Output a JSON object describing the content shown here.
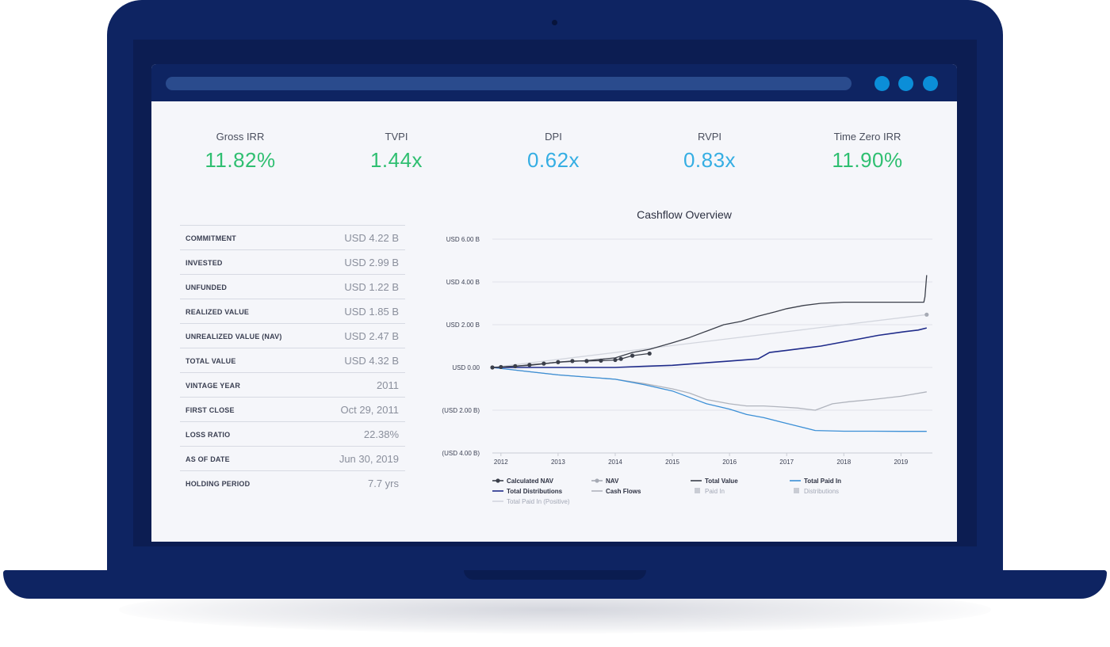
{
  "colors": {
    "positive": "#2fbf71",
    "neutral": "#35aee3",
    "navy": "#0e2462"
  },
  "browser": {
    "window_buttons": [
      "blue-dot",
      "blue-dot",
      "blue-dot"
    ]
  },
  "kpis": [
    {
      "label": "Gross IRR",
      "value": "11.82%",
      "tone": "positive"
    },
    {
      "label": "TVPI",
      "value": "1.44x",
      "tone": "positive"
    },
    {
      "label": "DPI",
      "value": "0.62x",
      "tone": "neutral"
    },
    {
      "label": "RVPI",
      "value": "0.83x",
      "tone": "neutral"
    },
    {
      "label": "Time Zero IRR",
      "value": "11.90%",
      "tone": "positive"
    }
  ],
  "summary": [
    {
      "label": "COMMITMENT",
      "value": "USD 4.22 B"
    },
    {
      "label": "INVESTED",
      "value": "USD 2.99 B"
    },
    {
      "label": "UNFUNDED",
      "value": "USD 1.22 B"
    },
    {
      "label": "REALIZED VALUE",
      "value": "USD 1.85 B"
    },
    {
      "label": "UNREALIZED VALUE (NAV)",
      "value": "USD 2.47 B"
    },
    {
      "label": "TOTAL VALUE",
      "value": "USD 4.32 B"
    },
    {
      "label": "VINTAGE YEAR",
      "value": "2011"
    },
    {
      "label": "FIRST CLOSE",
      "value": "Oct 29, 2011"
    },
    {
      "label": "LOSS RATIO",
      "value": "22.38%"
    },
    {
      "label": "AS OF DATE",
      "value": "Jun 30, 2019"
    },
    {
      "label": "HOLDING PERIOD",
      "value": "7.7 yrs"
    }
  ],
  "chart_data": {
    "type": "line",
    "title": "Cashflow Overview",
    "xlabel": "",
    "ylabel": "",
    "x_ticks": [
      "2012",
      "2013",
      "2014",
      "2015",
      "2016",
      "2017",
      "2018",
      "2019"
    ],
    "xlim": [
      2011.85,
      2019.55
    ],
    "y_ticks": [
      "USD 6.00 B",
      "USD 4.00 B",
      "USD 2.00 B",
      "USD 0.00",
      "(USD 2.00 B)",
      "(USD 4.00 B)"
    ],
    "ylim": [
      -4,
      6
    ],
    "grid": true,
    "legend_position": "bottom",
    "series": [
      {
        "name": "Calculated NAV",
        "color": "#3b3f4a",
        "markers": true,
        "x": [
          2011.85,
          2012.0,
          2012.25,
          2012.5,
          2012.75,
          2013.0,
          2013.25,
          2013.5,
          2013.75,
          2014.0,
          2014.1,
          2014.3,
          2014.6
        ],
        "y": [
          0.0,
          0.02,
          0.06,
          0.12,
          0.18,
          0.25,
          0.3,
          0.3,
          0.32,
          0.35,
          0.4,
          0.55,
          0.65
        ]
      },
      {
        "name": "NAV",
        "color": "#a6aab4",
        "markers": true,
        "x": [
          2019.45
        ],
        "y": [
          2.47
        ]
      },
      {
        "name": "Total Value",
        "color": "#3b3f4a",
        "markers": false,
        "x": [
          2011.85,
          2012.5,
          2013.0,
          2013.5,
          2014.0,
          2014.3,
          2014.6,
          2015.0,
          2015.3,
          2015.6,
          2015.9,
          2016.2,
          2016.5,
          2016.8,
          2017.0,
          2017.3,
          2017.6,
          2018.0,
          2018.5,
          2019.0,
          2019.4,
          2019.42,
          2019.45
        ],
        "y": [
          0.0,
          0.1,
          0.25,
          0.32,
          0.45,
          0.7,
          0.85,
          1.15,
          1.4,
          1.7,
          2.0,
          2.15,
          2.4,
          2.6,
          2.75,
          2.9,
          3.0,
          3.05,
          3.05,
          3.05,
          3.05,
          3.3,
          4.32
        ]
      },
      {
        "name": "Total Paid In",
        "color": "#3b8fd6",
        "markers": false,
        "x": [
          2011.85,
          2012.5,
          2013.0,
          2013.5,
          2014.0,
          2014.5,
          2015.0,
          2015.3,
          2015.6,
          2016.0,
          2016.3,
          2016.6,
          2016.9,
          2017.2,
          2017.5,
          2018.0,
          2018.5,
          2019.0,
          2019.45
        ],
        "y": [
          0.0,
          -0.2,
          -0.35,
          -0.45,
          -0.55,
          -0.8,
          -1.1,
          -1.4,
          -1.7,
          -1.95,
          -2.2,
          -2.35,
          -2.55,
          -2.75,
          -2.95,
          -2.98,
          -2.98,
          -2.99,
          -2.99
        ]
      },
      {
        "name": "Total Distributions",
        "color": "#1f2b8a",
        "markers": false,
        "x": [
          2011.85,
          2012.5,
          2013.0,
          2014.0,
          2014.5,
          2015.0,
          2015.5,
          2016.0,
          2016.5,
          2016.7,
          2017.0,
          2017.3,
          2017.6,
          2018.0,
          2018.3,
          2018.6,
          2019.0,
          2019.3,
          2019.45
        ],
        "y": [
          0.0,
          0.0,
          0.0,
          0.0,
          0.05,
          0.1,
          0.2,
          0.3,
          0.4,
          0.7,
          0.8,
          0.9,
          1.0,
          1.2,
          1.35,
          1.5,
          1.65,
          1.75,
          1.85
        ]
      },
      {
        "name": "Cash Flows",
        "color": "#b0b4bd",
        "markers": false,
        "x": [
          2011.85,
          2012.5,
          2013.0,
          2013.5,
          2014.0,
          2014.5,
          2015.0,
          2015.3,
          2015.6,
          2016.0,
          2016.3,
          2016.6,
          2016.9,
          2017.2,
          2017.5,
          2017.8,
          2018.1,
          2018.5,
          2019.0,
          2019.45
        ],
        "y": [
          0.0,
          -0.2,
          -0.35,
          -0.45,
          -0.55,
          -0.75,
          -1.0,
          -1.2,
          -1.5,
          -1.7,
          -1.8,
          -1.8,
          -1.85,
          -1.9,
          -2.0,
          -1.7,
          -1.6,
          -1.5,
          -1.35,
          -1.14
        ]
      },
      {
        "name": "Total Paid In (Positive)",
        "color": "#d3d6de",
        "markers": false,
        "x": [
          2011.85,
          2019.45
        ],
        "y": [
          0.0,
          2.47
        ]
      }
    ],
    "legend": [
      {
        "label": "Calculated NAV",
        "style": "line-dot",
        "color": "#3b3f4a",
        "muted": false
      },
      {
        "label": "NAV",
        "style": "line-dot",
        "color": "#a6aab4",
        "muted": false
      },
      {
        "label": "Total Value",
        "style": "line",
        "color": "#3b3f4a",
        "muted": false
      },
      {
        "label": "Total Paid In",
        "style": "line",
        "color": "#3b8fd6",
        "muted": false
      },
      {
        "label": "Total Distributions",
        "style": "line",
        "color": "#1f2b8a",
        "muted": false
      },
      {
        "label": "Cash Flows",
        "style": "line",
        "color": "#b0b4bd",
        "muted": false
      },
      {
        "label": "Paid In",
        "style": "square",
        "color": "#c9ccd4",
        "muted": true
      },
      {
        "label": "Distributions",
        "style": "square",
        "color": "#c9ccd4",
        "muted": true
      },
      {
        "label": "Total Paid In (Positive)",
        "style": "line",
        "color": "#d3d6de",
        "muted": true
      }
    ]
  }
}
